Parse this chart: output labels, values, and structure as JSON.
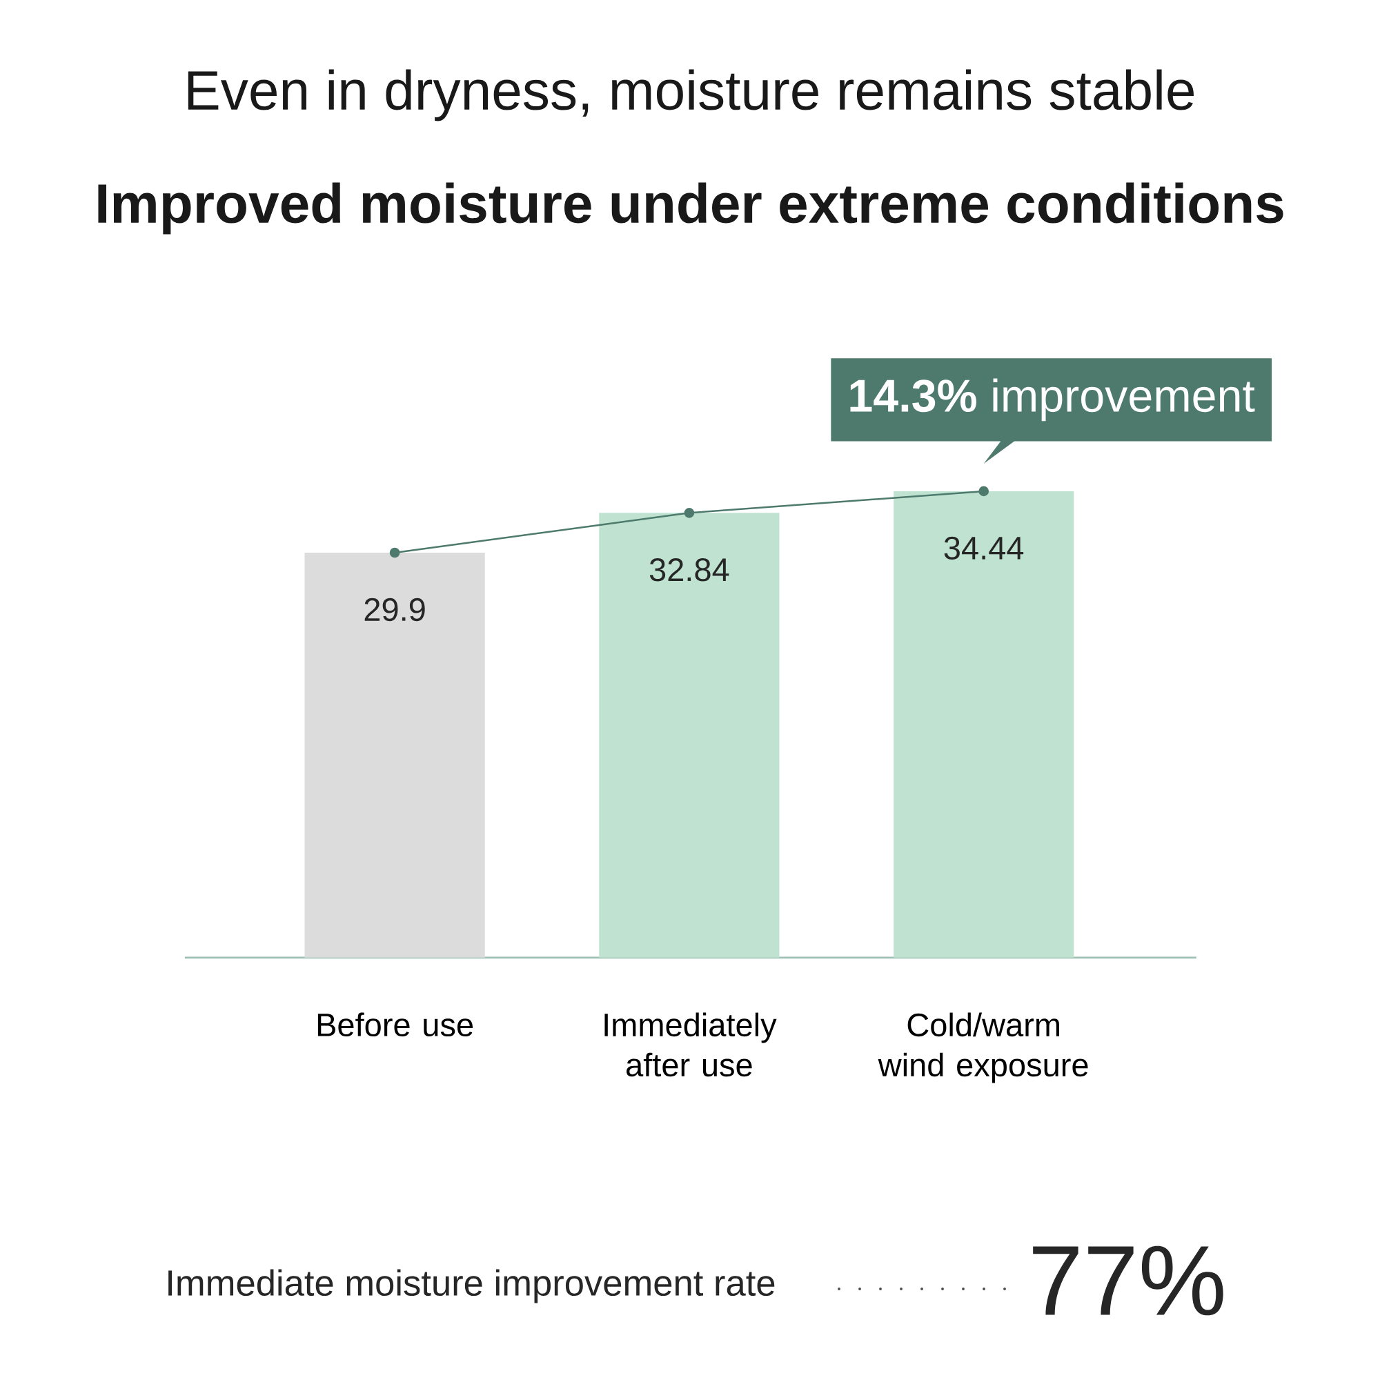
{
  "chart_data": {
    "type": "bar",
    "title": "Improved moisture under extreme conditions",
    "subtitle": "Even in dryness, moisture remains stable",
    "categories": [
      "Before use",
      "Immediately after use",
      "Cold/warm wind exposure"
    ],
    "series": [
      {
        "colors": [
          "#dcdcdc",
          "#bfe3d0",
          "#bfe3d0"
        ],
        "values": [
          29.9,
          32.84,
          34.44
        ],
        "value_labels": [
          "29.9",
          "32.84",
          "34.44"
        ]
      },
      {
        "type": "line",
        "color": "#4d7a6c",
        "values": [
          29.9,
          32.84,
          34.44
        ]
      }
    ],
    "marker": "circle",
    "annotations": [
      {
        "text": "**14.3%** improvement",
        "x": "Cold/warm wind exposure",
        "y": 34.44
      },
      "Immediate moisture improvement rate",
      "77%"
    ]
  }
}
